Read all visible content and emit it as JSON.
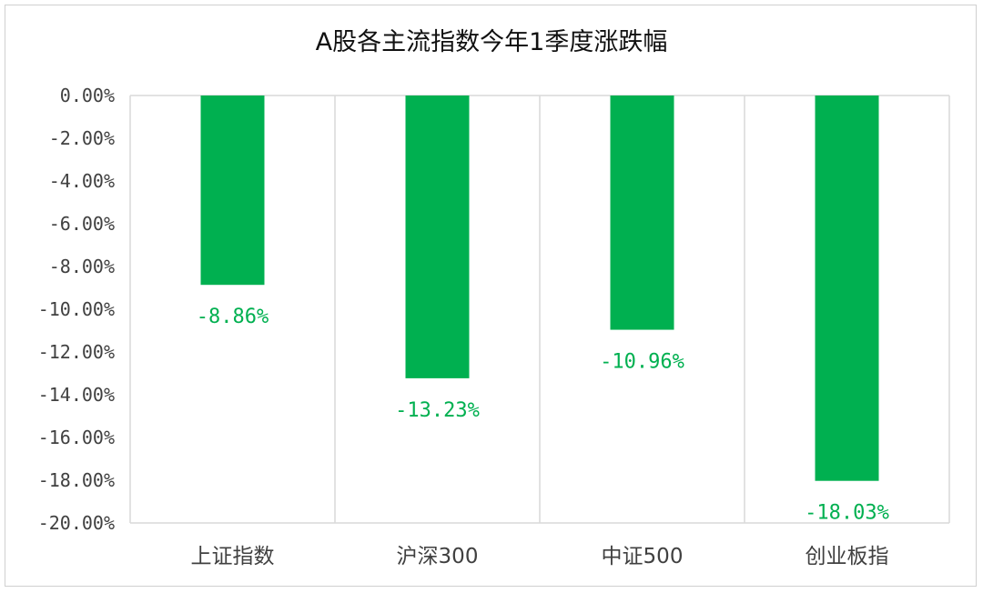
{
  "chart_data": {
    "type": "bar",
    "title": "A股各主流指数今年1季度涨跌幅",
    "categories": [
      "上证指数",
      "沪深300",
      "中证500",
      "创业板指"
    ],
    "values": [
      -8.86,
      -13.23,
      -10.96,
      -18.03
    ],
    "data_labels": [
      "-8.86%",
      "-13.23%",
      "-10.96%",
      "-18.03%"
    ],
    "y_ticks": [
      "0.00%",
      "-2.00%",
      "-4.00%",
      "-6.00%",
      "-8.00%",
      "-10.00%",
      "-12.00%",
      "-14.00%",
      "-16.00%",
      "-18.00%",
      "-20.00%"
    ],
    "ylim": [
      -20,
      0
    ],
    "xlabel": "",
    "ylabel": "",
    "grid": "vertical separators between categories",
    "legend": "none",
    "colors": {
      "bar": "#00b050",
      "label": "#00b050",
      "grid": "#d9d9d9",
      "axis_text": "#404040"
    }
  }
}
